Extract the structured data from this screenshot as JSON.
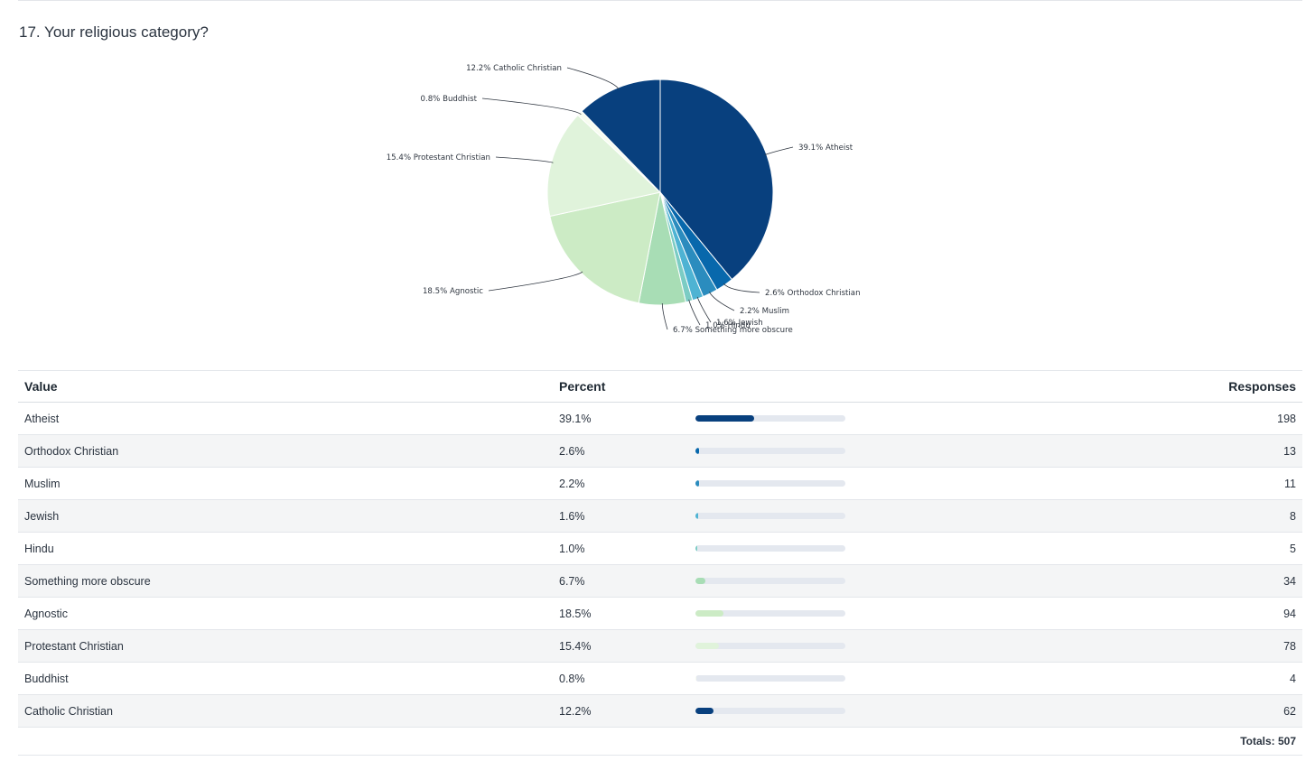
{
  "question": {
    "title": "17. Your religious category?"
  },
  "table": {
    "headers": {
      "value": "Value",
      "percent": "Percent",
      "responses": "Responses"
    },
    "rows": [
      {
        "value": "Atheist",
        "percent": "39.1%",
        "responses": "198"
      },
      {
        "value": "Orthodox Christian",
        "percent": "2.6%",
        "responses": "13"
      },
      {
        "value": "Muslim",
        "percent": "2.2%",
        "responses": "11"
      },
      {
        "value": "Jewish",
        "percent": "1.6%",
        "responses": "8"
      },
      {
        "value": "Hindu",
        "percent": "1.0%",
        "responses": "5"
      },
      {
        "value": "Something more obscure",
        "percent": "6.7%",
        "responses": "34"
      },
      {
        "value": "Agnostic",
        "percent": "18.5%",
        "responses": "94"
      },
      {
        "value": "Protestant Christian",
        "percent": "15.4%",
        "responses": "78"
      },
      {
        "value": "Buddhist",
        "percent": "0.8%",
        "responses": "4"
      },
      {
        "value": "Catholic Christian",
        "percent": "12.2%",
        "responses": "62"
      }
    ],
    "totals_label": "Totals: 507"
  },
  "chart_data": {
    "type": "pie",
    "categories": [
      "Atheist",
      "Orthodox Christian",
      "Muslim",
      "Jewish",
      "Hindu",
      "Something more obscure",
      "Agnostic",
      "Protestant Christian",
      "Buddhist",
      "Catholic Christian"
    ],
    "values": [
      198,
      13,
      11,
      8,
      5,
      34,
      94,
      78,
      4,
      62
    ],
    "percents": [
      39.1,
      2.6,
      2.2,
      1.6,
      1.0,
      6.7,
      18.5,
      15.4,
      0.8,
      12.2
    ],
    "labels": [
      "39.1% Atheist",
      "2.6% Orthodox Christian",
      "2.2% Muslim",
      "1.6% Jewish",
      "1.0% Hindu",
      "6.7% Something more obscure",
      "18.5% Agnostic",
      "15.4% Protestant Christian",
      "0.8% Buddhist",
      "12.2% Catholic Christian"
    ],
    "colors": [
      "#08407e",
      "#0868ac",
      "#2b8cbe",
      "#4eb3d3",
      "#7bccc4",
      "#a8ddb5",
      "#ccebc5",
      "#e0f3db",
      "#f7fcf0",
      "#08407e"
    ],
    "total": 507
  }
}
